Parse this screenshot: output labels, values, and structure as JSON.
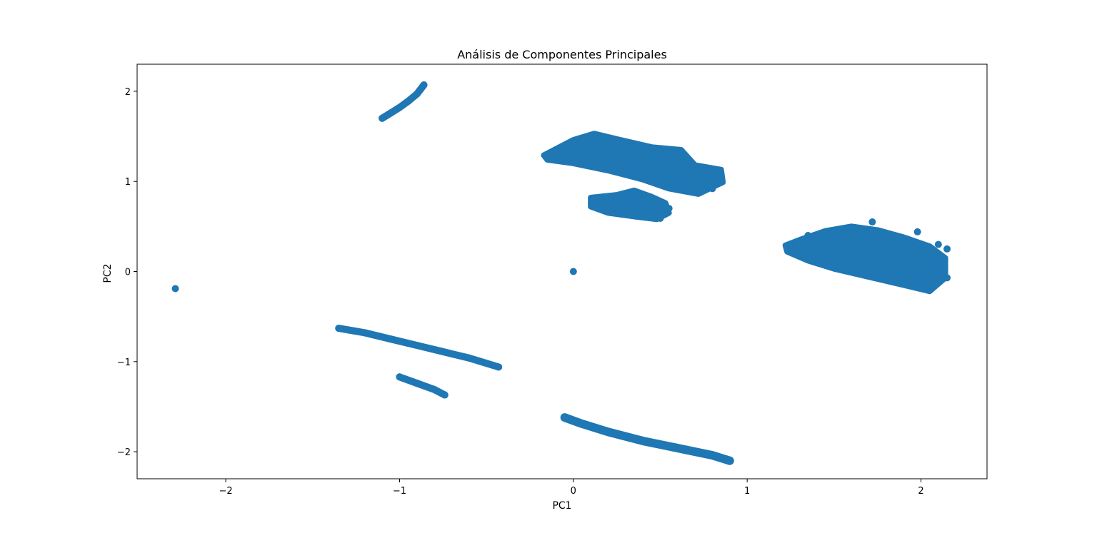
{
  "colors": {
    "series": "#1f77b4",
    "axis": "#000000",
    "background": "#ffffff"
  },
  "chart_data": {
    "type": "scatter",
    "title": "Análisis de Componentes Principales",
    "xlabel": "PC1",
    "ylabel": "PC2",
    "xlim": [
      -2.51,
      2.38
    ],
    "ylim": [
      -2.3,
      2.3
    ],
    "xticks": [
      -2,
      -1,
      0,
      1,
      2
    ],
    "yticks": [
      -2,
      -1,
      0,
      1,
      2
    ],
    "xtick_labels": [
      "−2",
      "−1",
      "0",
      "1",
      "2"
    ],
    "ytick_labels": [
      "−2",
      "−1",
      "0",
      "1",
      "2"
    ],
    "grid": false,
    "legend": "none",
    "series": [
      {
        "values": [
          [
            -2.29,
            -0.19
          ],
          [
            0.0,
            0.0
          ],
          [
            -1.1,
            1.7
          ],
          [
            -1.05,
            1.76
          ],
          [
            -1.0,
            1.82
          ],
          [
            -0.95,
            1.89
          ],
          [
            -0.9,
            1.97
          ],
          [
            -0.86,
            2.07
          ],
          [
            -1.35,
            -0.63
          ],
          [
            -1.2,
            -0.68
          ],
          [
            -1.05,
            -0.75
          ],
          [
            -0.9,
            -0.82
          ],
          [
            -0.75,
            -0.89
          ],
          [
            -0.6,
            -0.96
          ],
          [
            -0.43,
            -1.06
          ],
          [
            -1.0,
            -1.17
          ],
          [
            -0.9,
            -1.24
          ],
          [
            -0.8,
            -1.31
          ],
          [
            -0.74,
            -1.37
          ],
          [
            -0.05,
            -1.62
          ],
          [
            0.05,
            -1.69
          ],
          [
            0.2,
            -1.78
          ],
          [
            0.4,
            -1.88
          ],
          [
            0.6,
            -1.96
          ],
          [
            0.8,
            -2.04
          ],
          [
            0.9,
            -2.1
          ],
          [
            -0.15,
            1.29
          ],
          [
            0.0,
            1.38
          ],
          [
            0.05,
            1.46
          ],
          [
            0.15,
            1.5
          ],
          [
            0.1,
            1.25
          ],
          [
            0.2,
            1.38
          ],
          [
            0.3,
            1.23
          ],
          [
            0.35,
            1.38
          ],
          [
            0.45,
            1.12
          ],
          [
            0.45,
            1.3
          ],
          [
            0.55,
            1.08
          ],
          [
            0.55,
            1.34
          ],
          [
            0.65,
            1.17
          ],
          [
            0.65,
            0.98
          ],
          [
            0.75,
            1.12
          ],
          [
            0.8,
            0.92
          ],
          [
            0.85,
            1.0
          ],
          [
            0.6,
            1.32
          ],
          [
            0.25,
            1.42
          ],
          [
            0.12,
            0.8
          ],
          [
            0.15,
            0.7
          ],
          [
            0.25,
            0.79
          ],
          [
            0.3,
            0.7
          ],
          [
            0.35,
            0.83
          ],
          [
            0.4,
            0.63
          ],
          [
            0.45,
            0.78
          ],
          [
            0.5,
            0.65
          ],
          [
            0.55,
            0.7
          ],
          [
            0.5,
            0.59
          ],
          [
            0.33,
            0.87
          ],
          [
            1.25,
            0.3
          ],
          [
            1.3,
            0.22
          ],
          [
            1.35,
            0.4
          ],
          [
            1.45,
            0.42
          ],
          [
            1.5,
            0.15
          ],
          [
            1.6,
            0.35
          ],
          [
            1.65,
            0.45
          ],
          [
            1.7,
            0.1
          ],
          [
            1.8,
            0.3
          ],
          [
            1.85,
            0.0
          ],
          [
            1.9,
            0.2
          ],
          [
            1.95,
            -0.05
          ],
          [
            2.0,
            0.15
          ],
          [
            2.05,
            -0.15
          ],
          [
            2.1,
            0.05
          ],
          [
            2.15,
            -0.07
          ],
          [
            1.72,
            0.55
          ],
          [
            1.98,
            0.44
          ],
          [
            2.1,
            0.3
          ],
          [
            2.15,
            0.25
          ],
          [
            1.55,
            0.28
          ]
        ]
      }
    ]
  }
}
